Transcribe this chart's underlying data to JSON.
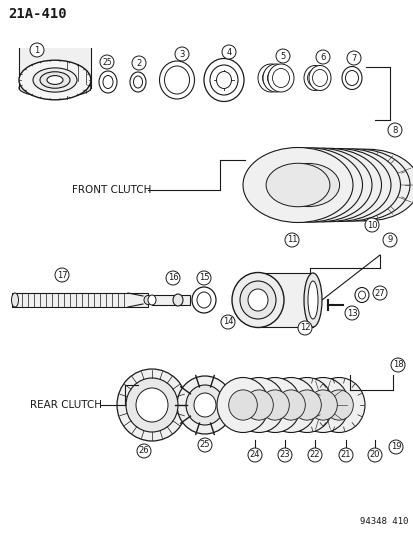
{
  "title": "21A-410",
  "catalog_number": "94348 410",
  "front_clutch_label": "FRONT CLUTCH",
  "rear_clutch_label": "REAR CLUTCH",
  "bg_color": "#ffffff",
  "line_color": "#1a1a1a",
  "text_color": "#1a1a1a",
  "figsize": [
    4.14,
    5.33
  ],
  "dpi": 100
}
